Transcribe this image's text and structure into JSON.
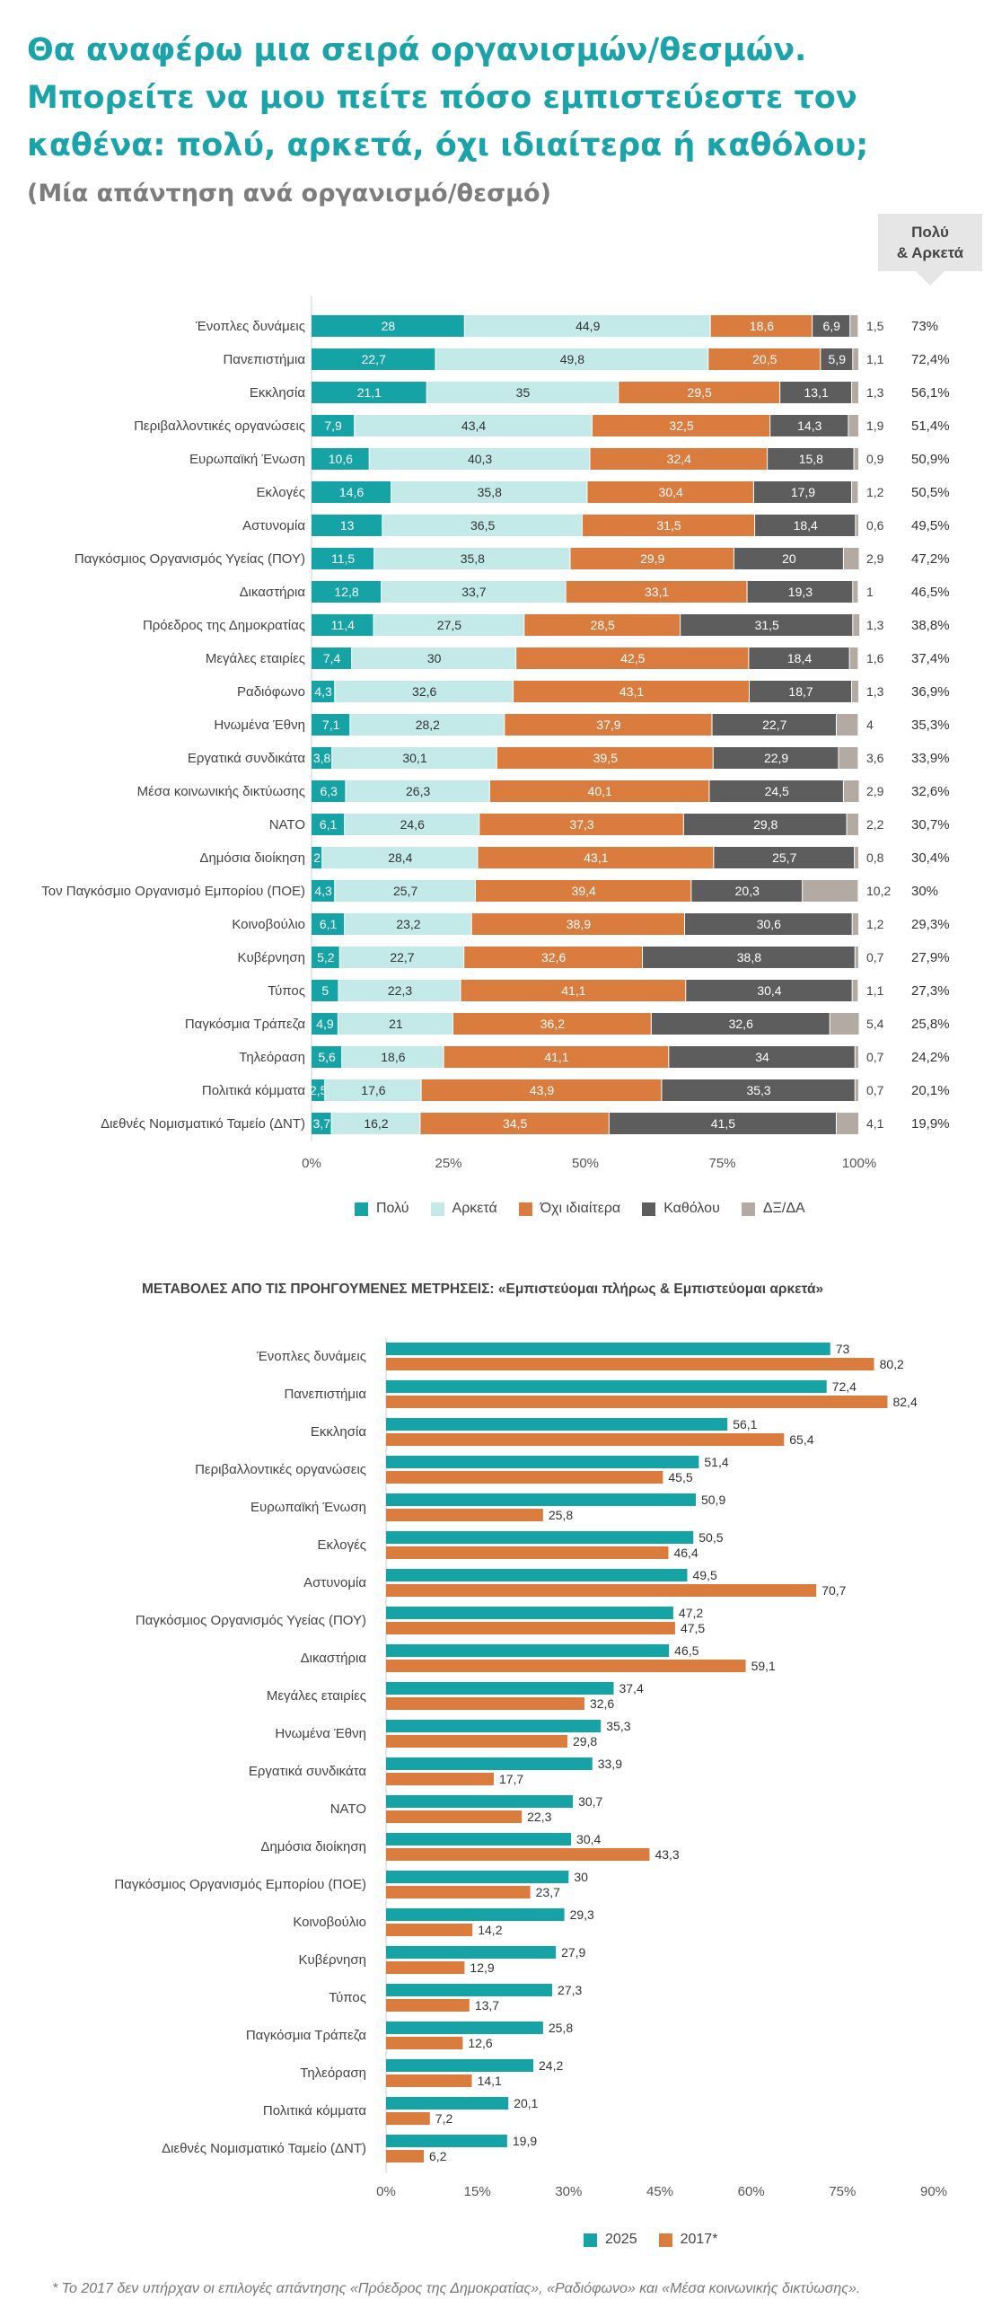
{
  "header": {
    "title": "Θα αναφέρω μια σειρά οργανισμών/θεσμών. Μπορείτε να μου πείτε πόσο εμπιστεύεστε τον καθένα: πολύ, αρκετά, όχι ιδιαίτερα ή καθόλου;",
    "subtitle": "(Μία απάντηση ανά οργανισμό/θεσμό)",
    "pa_line1": "Πολύ",
    "pa_line2": "& Αρκετά"
  },
  "chart_data": [
    {
      "type": "bar",
      "orientation": "horizontal",
      "stacked": true,
      "categories": [
        "Ένοπλες δυνάμεις",
        "Πανεπιστήμια",
        "Εκκλησία",
        "Περιβαλλοντικές οργανώσεις",
        "Ευρωπαϊκή Ένωση",
        "Εκλογές",
        "Αστυνομία",
        "Παγκόσμιος Οργανισμός Υγείας (ΠΟΥ)",
        "Δικαστήρια",
        "Πρόεδρος της Δημοκρατίας",
        "Μεγάλες εταιρίες",
        "Ραδιόφωνο",
        "Ηνωμένα Έθνη",
        "Εργατικά συνδικάτα",
        "Μέσα κοινωνικής δικτύωσης",
        "ΝΑΤΟ",
        "Δημόσια διοίκηση",
        "Τον Παγκόσμιο Οργανισμό Εμπορίου (ΠΟΕ)",
        "Κοινοβούλιο",
        "Κυβέρνηση",
        "Τύπος",
        "Παγκόσμια Τράπεζα",
        "Τηλεόραση",
        "Πολιτικά κόμματα",
        "Διεθνές Νομισματικό Ταμείο (ΔΝΤ)"
      ],
      "series": [
        {
          "name": "Πολύ",
          "color": "#16a3a6",
          "values": [
            "28",
            "22,7",
            "21,1",
            "7,9",
            "10,6",
            "14,6",
            "13",
            "11,5",
            "12,8",
            "11,4",
            "7,4",
            "4,3",
            "7,1",
            "3,8",
            "6,3",
            "6,1",
            "2",
            "4,3",
            "6,1",
            "5,2",
            "5",
            "4,9",
            "5,6",
            "2,5",
            "3,7"
          ]
        },
        {
          "name": "Αρκετά",
          "color": "#c3e9e9",
          "values": [
            "44,9",
            "49,8",
            "35",
            "43,4",
            "40,3",
            "35,8",
            "36,5",
            "35,8",
            "33,7",
            "27,5",
            "30",
            "32,6",
            "28,2",
            "30,1",
            "26,3",
            "24,6",
            "28,4",
            "25,7",
            "23,2",
            "22,7",
            "22,3",
            "21",
            "18,6",
            "17,6",
            "16,2"
          ]
        },
        {
          "name": "Όχι ιδιαίτερα",
          "color": "#db7c3f",
          "values": [
            "18,6",
            "20,5",
            "29,5",
            "32,5",
            "32,4",
            "30,4",
            "31,5",
            "29,9",
            "33,1",
            "28,5",
            "42,5",
            "43,1",
            "37,9",
            "39,5",
            "40,1",
            "37,3",
            "43,1",
            "39,4",
            "38,9",
            "32,6",
            "41,1",
            "36,2",
            "41,1",
            "43,9",
            "34,5"
          ]
        },
        {
          "name": "Καθόλου",
          "color": "#5d5d5d",
          "values": [
            "6,9",
            "5,9",
            "13,1",
            "14,3",
            "15,8",
            "17,9",
            "18,4",
            "20",
            "19,3",
            "31,5",
            "18,4",
            "18,7",
            "22,7",
            "22,9",
            "24,5",
            "29,8",
            "25,7",
            "20,3",
            "30,6",
            "38,8",
            "30,4",
            "32,6",
            "34",
            "35,3",
            "41,5"
          ]
        },
        {
          "name": "ΔΞ/ΔΑ",
          "color": "#b3aaa3",
          "values": [
            "1,5",
            "1,1",
            "1,3",
            "1,9",
            "0,9",
            "1,2",
            "0,6",
            "2,9",
            "1",
            "1,3",
            "1,6",
            "1,3",
            "4",
            "3,6",
            "2,9",
            "2,2",
            "0,8",
            "10,2",
            "1,2",
            "0,7",
            "1,1",
            "5,4",
            "0,7",
            "0,7",
            "4,1"
          ]
        }
      ],
      "totals": [
        "73%",
        "72,4%",
        "56,1%",
        "51,4%",
        "50,9%",
        "50,5%",
        "49,5%",
        "47,2%",
        "46,5%",
        "38,8%",
        "37,4%",
        "36,9%",
        "35,3%",
        "33,9%",
        "32,6%",
        "30,7%",
        "30,4%",
        "30%",
        "29,3%",
        "27,9%",
        "27,3%",
        "25,8%",
        "24,2%",
        "20,1%",
        "19,9%"
      ],
      "xticks": [
        "0%",
        "25%",
        "50%",
        "75%",
        "100%"
      ],
      "xlim": [
        0,
        100
      ]
    },
    {
      "type": "bar",
      "orientation": "horizontal",
      "title": "ΜΕΤΑΒΟΛΕΣ ΑΠΟ ΤΙΣ ΠΡΟΗΓΟΥΜΕΝΕΣ ΜΕΤΡΗΣΕΙΣ: «Εμπιστεύομαι πλήρως & Εμπιστεύομαι αρκετά»",
      "categories": [
        "Ένοπλες δυνάμεις",
        "Πανεπιστήμια",
        "Εκκλησία",
        "Περιβαλλοντικές οργανώσεις",
        "Ευρωπαϊκή Ένωση",
        "Εκλογές",
        "Αστυνομία",
        "Παγκόσμιος Οργανισμός Υγείας (ΠΟΥ)",
        "Δικαστήρια",
        "Μεγάλες εταιρίες",
        "Ηνωμένα Έθνη",
        "Εργατικά συνδικάτα",
        "ΝΑΤΟ",
        "Δημόσια διοίκηση",
        "Παγκόσμιος Οργανισμός Εμπορίου (ΠΟΕ)",
        "Κοινοβούλιο",
        "Κυβέρνηση",
        "Τύπος",
        "Παγκόσμια Τράπεζα",
        "Τηλεόραση",
        "Πολιτικά κόμματα",
        "Διεθνές Νομισματικό Ταμείο (ΔΝΤ)"
      ],
      "series": [
        {
          "name": "2025",
          "color": "#16a3a6",
          "values": [
            "73",
            "72,4",
            "56,1",
            "51,4",
            "50,9",
            "50,5",
            "49,5",
            "47,2",
            "46,5",
            "37,4",
            "35,3",
            "33,9",
            "30,7",
            "30,4",
            "30",
            "29,3",
            "27,9",
            "27,3",
            "25,8",
            "24,2",
            "20,1",
            "19,9"
          ]
        },
        {
          "name": "2017*",
          "color": "#db7c3f",
          "values": [
            "80,2",
            "82,4",
            "65,4",
            "45,5",
            "25,8",
            "46,4",
            "70,7",
            "47,5",
            "59,1",
            "32,6",
            "29,8",
            "17,7",
            "22,3",
            "43,3",
            "23,7",
            "14,2",
            "12,9",
            "13,7",
            "12,6",
            "14,1",
            "7,2",
            "6,2"
          ]
        }
      ],
      "xticks": [
        "0%",
        "15%",
        "30%",
        "45%",
        "60%",
        "75%",
        "90%"
      ],
      "xlim": [
        0,
        90
      ]
    }
  ],
  "footnote": "* Το 2017 δεν υπήρχαν οι επιλογές απάντησης «Πρόεδρος της Δημοκρατίας», «Ραδιόφωνο» και «Μέσα κοινωνικής δικτύωσης»."
}
